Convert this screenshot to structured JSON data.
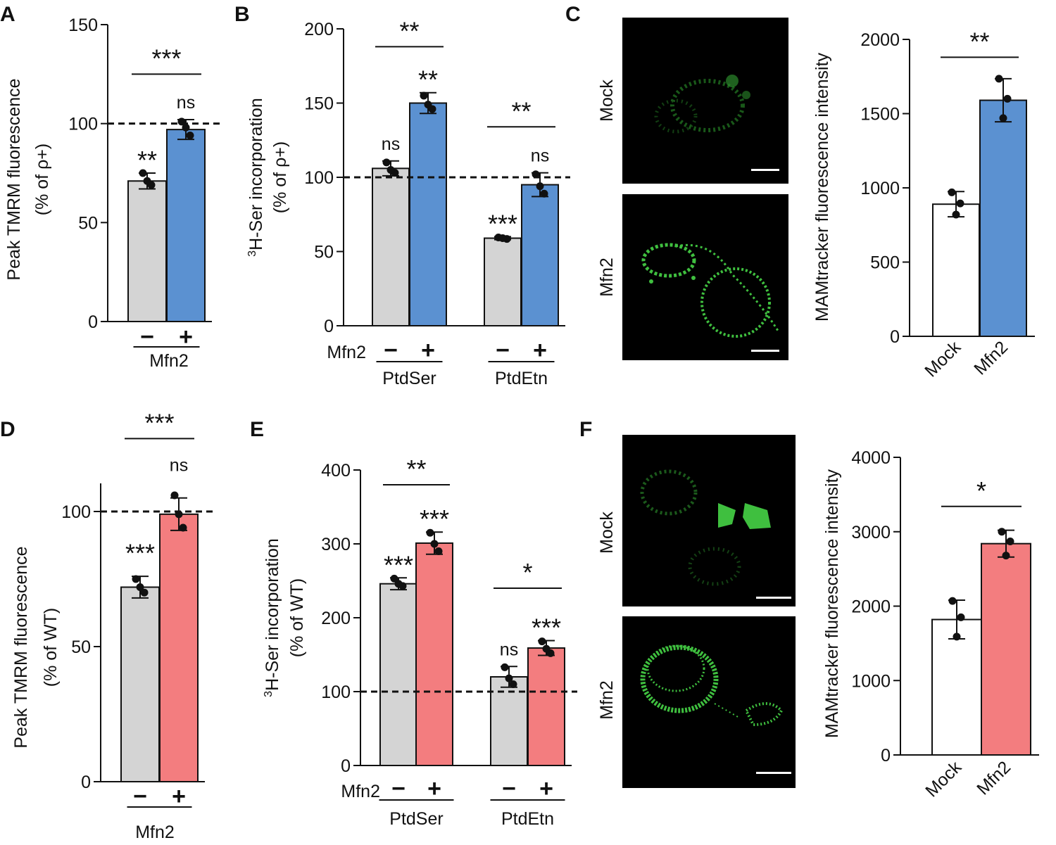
{
  "figure": {
    "colors": {
      "gray": "#d4d4d4",
      "blue": "#5b91d1",
      "red": "#f37d7f",
      "white": "#ffffff",
      "axis": "#111111",
      "microscopy_bg": "#000000",
      "microscopy_signal": "#3fbf3f",
      "scale_bar": "#ffffff"
    },
    "panel_labels": {
      "A": "A",
      "B": "B",
      "C": "C",
      "D": "D",
      "E": "E",
      "F": "F"
    },
    "micrograph_labels": {
      "C": {
        "top": "Mock",
        "bottom": "Mfn2"
      },
      "F": {
        "top": "Mock",
        "bottom": "Mfn2"
      }
    }
  },
  "chart_data": [
    {
      "id": "A",
      "type": "bar",
      "ylabel_lines": [
        "Peak TMRM fluorescence",
        "(% of ρ+)"
      ],
      "ylim": [
        0,
        150
      ],
      "yticks": [
        0,
        50,
        100,
        150
      ],
      "reference_line": 100,
      "groups": [
        {
          "name": "",
          "conditions": [
            "-",
            "+"
          ]
        }
      ],
      "condition_axis_label": "Mfn2",
      "bars": [
        {
          "group": 0,
          "condition": "-",
          "color": "gray",
          "mean": 71,
          "error": 4,
          "points": [
            75,
            69,
            71
          ],
          "mark": "**"
        },
        {
          "group": 0,
          "condition": "+",
          "color": "blue",
          "mean": 97,
          "error": 5,
          "points": [
            101,
            94,
            98
          ],
          "mark": "ns"
        }
      ],
      "comparisons": [
        {
          "bars": [
            0,
            1
          ],
          "mark": "***",
          "y": 125
        }
      ]
    },
    {
      "id": "B",
      "type": "bar",
      "ylabel_lines": [
        "³H-Ser incorporation",
        "(% of ρ+)"
      ],
      "ylim": [
        0,
        200
      ],
      "yticks": [
        0,
        50,
        100,
        150,
        200
      ],
      "reference_line": 100,
      "groups": [
        {
          "name": "PtdSer",
          "conditions": [
            "-",
            "+"
          ]
        },
        {
          "name": "PtdEtn",
          "conditions": [
            "-",
            "+"
          ]
        }
      ],
      "condition_axis_label": "Mfn2",
      "bars": [
        {
          "group": 0,
          "condition": "-",
          "color": "gray",
          "mean": 106,
          "error": 5,
          "points": [
            110,
            103,
            105
          ],
          "mark": "ns"
        },
        {
          "group": 0,
          "condition": "+",
          "color": "blue",
          "mean": 150,
          "error": 7,
          "points": [
            155,
            146,
            149
          ],
          "mark": "**"
        },
        {
          "group": 1,
          "condition": "-",
          "color": "gray",
          "mean": 59,
          "error": 1,
          "points": [
            59.5,
            58.5,
            59
          ],
          "mark": "***"
        },
        {
          "group": 1,
          "condition": "+",
          "color": "blue",
          "mean": 95,
          "error": 8,
          "points": [
            102,
            89,
            94
          ],
          "mark": "ns"
        }
      ],
      "comparisons": [
        {
          "bars": [
            0,
            1
          ],
          "mark": "**",
          "y": 188
        },
        {
          "bars": [
            2,
            3
          ],
          "mark": "**",
          "y": 134
        }
      ]
    },
    {
      "id": "C",
      "type": "bar",
      "ylabel_lines": [
        "MAMtracker fluorescence intensity"
      ],
      "ylim": [
        0,
        2000
      ],
      "yticks": [
        0,
        500,
        1000,
        1500,
        2000
      ],
      "categories": [
        "Mock",
        "Mfn2"
      ],
      "bars": [
        {
          "category": "Mock",
          "color": "white",
          "mean": 890,
          "error": 85,
          "points": [
            970,
            895,
            820
          ]
        },
        {
          "category": "Mfn2",
          "color": "blue",
          "mean": 1590,
          "error": 145,
          "points": [
            1735,
            1600,
            1470
          ]
        }
      ],
      "comparisons": [
        {
          "bars": [
            0,
            1
          ],
          "mark": "**",
          "y": 1880
        }
      ]
    },
    {
      "id": "D",
      "type": "bar",
      "ylabel_lines": [
        "Peak TMRM fluorescence",
        "(% of WT)"
      ],
      "ylim": [
        0,
        100
      ],
      "yticks": [
        0,
        50,
        100
      ],
      "reference_line": 100,
      "groups": [
        {
          "name": "",
          "conditions": [
            "-",
            "+"
          ]
        }
      ],
      "condition_axis_label": "Mfn2",
      "bars": [
        {
          "group": 0,
          "condition": "-",
          "color": "gray",
          "mean": 72,
          "error": 4,
          "points": [
            75,
            70,
            72
          ]
        },
        {
          "group": 0,
          "condition": "+",
          "color": "red",
          "mean": 99,
          "error": 6,
          "points": [
            106,
            94,
            99
          ]
        }
      ],
      "marks": [
        {
          "bar": 0,
          "mark": "***",
          "y": 84
        },
        {
          "bar": 1,
          "mark": "ns",
          "y": 115
        }
      ],
      "comparisons": [
        {
          "bars": [
            0,
            1
          ],
          "mark": "***",
          "y": 127
        }
      ]
    },
    {
      "id": "E",
      "type": "bar",
      "ylabel_lines": [
        "³H-Ser incorporation",
        "(% of WT)"
      ],
      "ylim": [
        0,
        400
      ],
      "yticks": [
        0,
        100,
        200,
        300,
        400
      ],
      "reference_line": 100,
      "groups": [
        {
          "name": "PtdSer",
          "conditions": [
            "-",
            "+"
          ]
        },
        {
          "name": "PtdEtn",
          "conditions": [
            "-",
            "+"
          ]
        }
      ],
      "condition_axis_label": "Mfn2",
      "bars": [
        {
          "group": 0,
          "condition": "-",
          "color": "gray",
          "mean": 246,
          "error": 8,
          "points": [
            253,
            243,
            246
          ],
          "mark": "***"
        },
        {
          "group": 0,
          "condition": "+",
          "color": "red",
          "mean": 301,
          "error": 15,
          "points": [
            315,
            290,
            300
          ],
          "mark": "***"
        },
        {
          "group": 1,
          "condition": "-",
          "color": "gray",
          "mean": 120,
          "error": 14,
          "points": [
            133,
            110,
            118
          ],
          "mark": "ns"
        },
        {
          "group": 1,
          "condition": "+",
          "color": "red",
          "mean": 159,
          "error": 10,
          "points": [
            168,
            152,
            158
          ],
          "mark": "***"
        }
      ],
      "comparisons": [
        {
          "bars": [
            0,
            1
          ],
          "mark": "**",
          "y": 380
        },
        {
          "bars": [
            2,
            3
          ],
          "mark": "*",
          "y": 240
        }
      ]
    },
    {
      "id": "F",
      "type": "bar",
      "ylabel_lines": [
        "MAMtracker fluorescence intensity"
      ],
      "ylim": [
        0,
        4000
      ],
      "yticks": [
        0,
        1000,
        2000,
        3000,
        4000
      ],
      "categories": [
        "Mock",
        "Mfn2"
      ],
      "bars": [
        {
          "category": "Mock",
          "color": "white",
          "mean": 1820,
          "error": 260,
          "points": [
            2070,
            1850,
            1590
          ]
        },
        {
          "category": "Mfn2",
          "color": "red",
          "mean": 2840,
          "error": 180,
          "points": [
            3000,
            2870,
            2680
          ]
        }
      ],
      "comparisons": [
        {
          "bars": [
            0,
            1
          ],
          "mark": "*",
          "y": 3340
        }
      ]
    }
  ]
}
